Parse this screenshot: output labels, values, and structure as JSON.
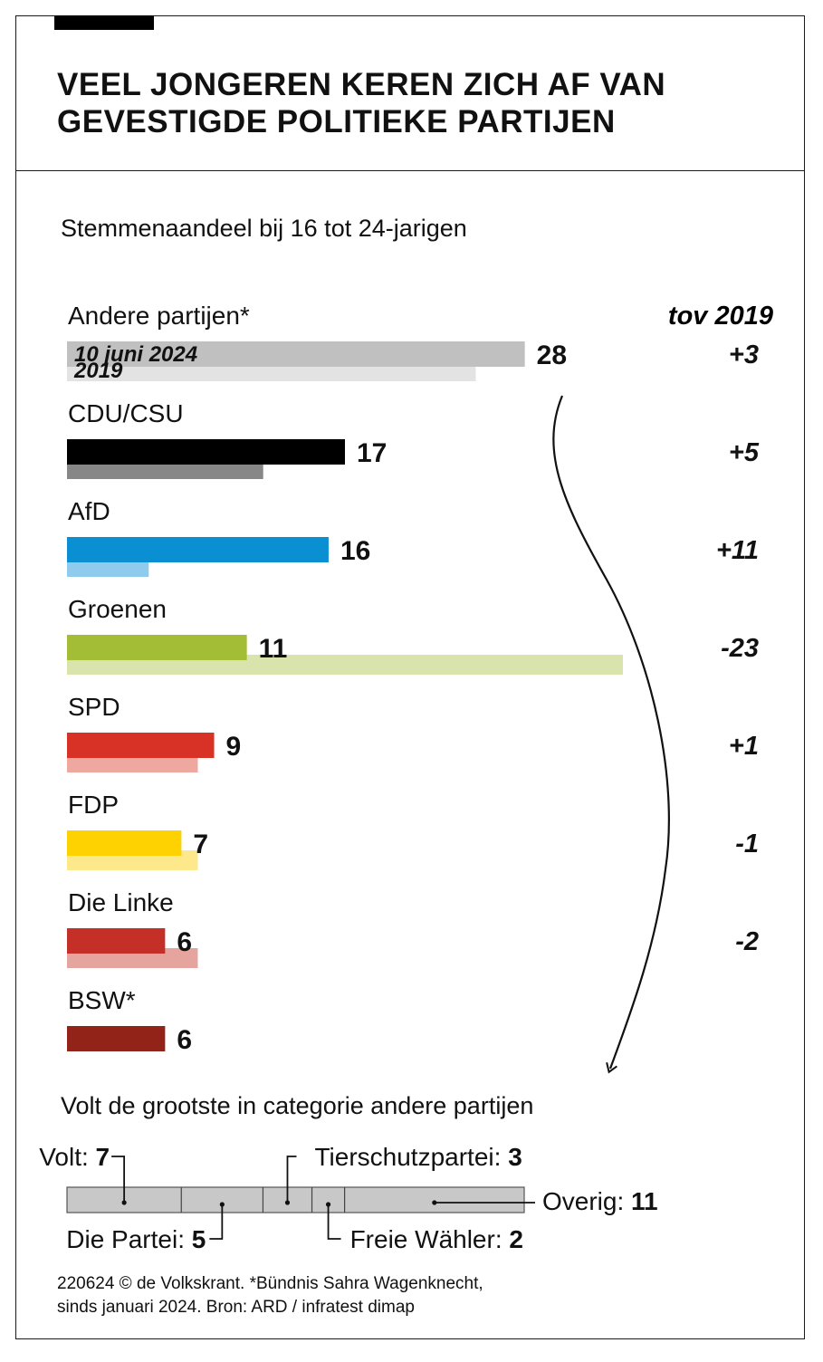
{
  "title_line1": "Veel jongeren keren zich af van",
  "title_line2": "gevestigde politieke partijen",
  "subtitle": "Stemmenaandeel bij 16 tot 24-jarigen",
  "chart_data": {
    "type": "bar",
    "orientation": "horizontal",
    "title": "Stemmenaandeel bij 16 tot 24-jarigen",
    "change_header": "tov 2019",
    "legend": {
      "current": "10 juni 2024",
      "previous": "2019"
    },
    "xlim": [
      0,
      34
    ],
    "categories": [
      "Andere partijen*",
      "CDU/CSU",
      "AfD",
      "Groenen",
      "SPD",
      "FDP",
      "Die Linke",
      "BSW*"
    ],
    "series": [
      {
        "name": "10 juni 2024",
        "values": [
          28,
          17,
          16,
          11,
          9,
          7,
          6,
          6
        ]
      },
      {
        "name": "2019",
        "values": [
          25,
          12,
          5,
          34,
          8,
          8,
          8,
          null
        ]
      }
    ],
    "value_labels": [
      "28",
      "17",
      "16",
      "11",
      "9",
      "7",
      "6",
      "6"
    ],
    "changes": [
      "+3",
      "+5",
      "+11",
      "-23",
      "+1",
      "-1",
      "-2",
      ""
    ],
    "colors_current": [
      "#c0c0c0",
      "#000000",
      "#0a8fd3",
      "#a3bd36",
      "#d83227",
      "#fdd200",
      "#c43027",
      "#922319"
    ],
    "colors_previous": [
      "#e3e3e3",
      "#878787",
      "#8ecbec",
      "#d9e4ac",
      "#efa8a0",
      "#fde88c",
      "#e5a49d",
      null
    ],
    "breakdown": {
      "title": "Volt de grootste in categorie andere partijen",
      "total": 28,
      "segments": [
        {
          "label": "Volt:",
          "value": 7
        },
        {
          "label": "Die Partei:",
          "value": 5
        },
        {
          "label": "Tierschutzpartei:",
          "value": 3
        },
        {
          "label": "Freie Wähler:",
          "value": 2
        },
        {
          "label": "Overig:",
          "value": 11
        }
      ]
    }
  },
  "footer_line1": "220624 © de Volkskrant.  *Bündnis Sahra Wagenknecht,",
  "footer_line2": "sinds januari 2024. Bron: ARD / infratest dimap"
}
